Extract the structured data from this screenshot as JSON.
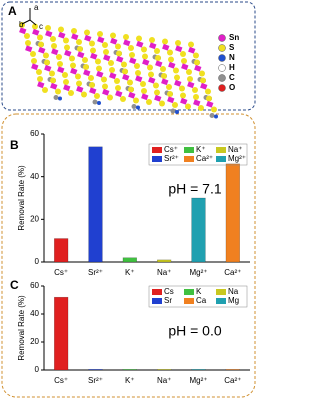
{
  "panel_a": {
    "label": "A",
    "axes": [
      "a",
      "b",
      "c"
    ],
    "legend": [
      {
        "name": "Sn",
        "color": "#e020c8"
      },
      {
        "name": "S",
        "color": "#f0e020"
      },
      {
        "name": "N",
        "color": "#2050d0"
      },
      {
        "name": "H",
        "color": "#ffffff"
      },
      {
        "name": "C",
        "color": "#909090"
      },
      {
        "name": "O",
        "color": "#e02020"
      }
    ]
  },
  "chart_data": [
    {
      "type": "bar",
      "panel_label": "B",
      "ylabel": "Removal Rate (%)",
      "annotation": "pH = 7.1",
      "categories": [
        "Cs⁺",
        "Sr²⁺",
        "K⁺",
        "Na⁺",
        "Mg²⁺",
        "Ca²⁺"
      ],
      "series": [
        {
          "name": "Cs⁺",
          "color": "#e02020",
          "values": [
            11,
            null,
            null,
            null,
            null,
            null
          ]
        },
        {
          "name": "K⁺",
          "color": "#40c040",
          "values": [
            null,
            null,
            2,
            null,
            null,
            null
          ]
        },
        {
          "name": "Na⁺",
          "color": "#c8c820",
          "values": [
            null,
            null,
            null,
            1,
            null,
            null
          ]
        },
        {
          "name": "Sr²⁺",
          "color": "#2040d0",
          "values": [
            null,
            54,
            null,
            null,
            null,
            null
          ]
        },
        {
          "name": "Ca²⁺",
          "color": "#f08020",
          "values": [
            null,
            null,
            null,
            null,
            null,
            46
          ]
        },
        {
          "name": "Mg²⁺",
          "color": "#20a0b0",
          "values": [
            null,
            null,
            null,
            null,
            30,
            null
          ]
        }
      ],
      "ylim": [
        0,
        60
      ],
      "yticks": [
        0,
        20,
        40,
        60
      ]
    },
    {
      "type": "bar",
      "panel_label": "C",
      "ylabel": "Removal Rate (%)",
      "annotation": "pH = 0.0",
      "categories": [
        "Cs⁺",
        "Sr²⁺",
        "K⁺",
        "Na⁺",
        "Mg²⁺",
        "Ca²⁺"
      ],
      "series": [
        {
          "name": "Cs",
          "color": "#e02020",
          "values": [
            52,
            null,
            null,
            null,
            null,
            null
          ]
        },
        {
          "name": "K",
          "color": "#40c040",
          "values": [
            null,
            null,
            0.5,
            null,
            null,
            null
          ]
        },
        {
          "name": "Na",
          "color": "#c8c820",
          "values": [
            null,
            null,
            null,
            0.5,
            null,
            null
          ]
        },
        {
          "name": "Sr",
          "color": "#2040d0",
          "values": [
            null,
            0.5,
            null,
            null,
            null,
            null
          ]
        },
        {
          "name": "Ca",
          "color": "#f08020",
          "values": [
            null,
            null,
            null,
            null,
            null,
            0.5
          ]
        },
        {
          "name": "Mg",
          "color": "#20a0b0",
          "values": [
            null,
            null,
            null,
            null,
            0.5,
            null
          ]
        }
      ],
      "ylim": [
        0,
        60
      ],
      "yticks": [
        0,
        20,
        40,
        60
      ]
    }
  ]
}
